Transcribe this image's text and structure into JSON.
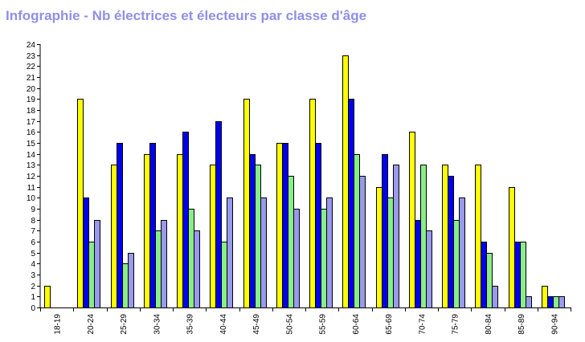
{
  "chart_data": {
    "type": "bar",
    "title": "Infographie - Nb électrices et électeurs par classe d'âge",
    "xlabel": "",
    "ylabel": "",
    "ylim": [
      0,
      24
    ],
    "yticks": [
      0,
      1,
      2,
      3,
      4,
      5,
      6,
      7,
      8,
      9,
      10,
      11,
      12,
      13,
      14,
      15,
      16,
      17,
      18,
      19,
      20,
      21,
      22,
      23,
      24
    ],
    "grid": false,
    "legend": "none",
    "categories": [
      "18-19",
      "20-24",
      "25-29",
      "30-34",
      "35-39",
      "40-44",
      "45-49",
      "50-54",
      "55-59",
      "60-64",
      "65-69",
      "70-74",
      "75-79",
      "80-84",
      "85-89",
      "90-94"
    ],
    "series": [
      {
        "color": "#ffff00",
        "values": [
          2,
          19,
          13,
          14,
          14,
          13,
          19,
          15,
          19,
          23,
          11,
          16,
          13,
          13,
          11,
          2
        ]
      },
      {
        "color": "#0000ee",
        "values": [
          0,
          10,
          15,
          15,
          16,
          17,
          14,
          15,
          15,
          19,
          14,
          8,
          12,
          6,
          6,
          1
        ]
      },
      {
        "color": "#88ee88",
        "values": [
          0,
          6,
          4,
          7,
          9,
          6,
          13,
          12,
          9,
          14,
          10,
          13,
          8,
          5,
          6,
          1
        ]
      },
      {
        "color": "#9999ee",
        "values": [
          0,
          8,
          5,
          8,
          7,
          10,
          10,
          9,
          10,
          12,
          13,
          7,
          10,
          2,
          1,
          1
        ]
      }
    ]
  }
}
